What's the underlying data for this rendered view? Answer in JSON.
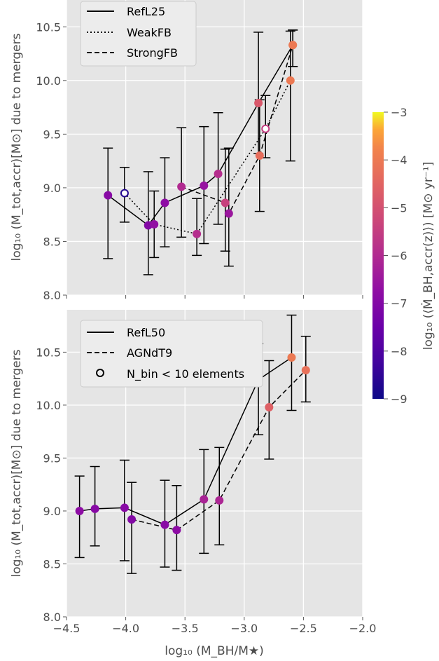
{
  "figure": {
    "xlabel": "log₁₀ (M_BH/M★)",
    "ylabel": "log₁₀ (M_tot,accr)[M⊙] due to mergers",
    "colorbar": {
      "label": "log₁₀ (⟨Ṁ_BH,accr(z)⟩) [M⊙ yr⁻¹]",
      "range": [
        -9,
        -3
      ],
      "ticks": [
        "−9",
        "−8",
        "−7",
        "−6",
        "−5",
        "−4",
        "−3"
      ],
      "colormap": "plasma"
    },
    "x_ticks": [
      "−4.5",
      "−4.0",
      "−3.5",
      "−3.0",
      "−2.5",
      "−2.0"
    ],
    "y_ticks": [
      "8.0",
      "8.5",
      "9.0",
      "9.5",
      "10.0",
      "10.5"
    ]
  },
  "chart_data": [
    {
      "type": "scatter",
      "panel": "top",
      "xlim": [
        -4.5,
        -2.0
      ],
      "ylim": [
        8.0,
        10.75
      ],
      "grid": true,
      "legend_position": "top-left",
      "legend": [
        "RefL25",
        "WeakFB",
        "StrongFB"
      ],
      "series": [
        {
          "name": "RefL25",
          "linestyle": "solid",
          "points": [
            {
              "x": -4.15,
              "y": 8.93,
              "lo": 8.34,
              "hi": 9.37,
              "c": -6.9,
              "open": false
            },
            {
              "x": -3.81,
              "y": 8.65,
              "lo": 8.19,
              "hi": 9.15,
              "c": -7.0,
              "open": false
            },
            {
              "x": -3.67,
              "y": 8.86,
              "lo": 8.45,
              "hi": 9.28,
              "c": -6.8,
              "open": false
            },
            {
              "x": -3.34,
              "y": 9.02,
              "lo": 8.48,
              "hi": 9.57,
              "c": -6.6,
              "open": false
            },
            {
              "x": -3.22,
              "y": 9.13,
              "lo": 8.66,
              "hi": 9.7,
              "c": -5.9,
              "open": false
            },
            {
              "x": -2.88,
              "y": 9.79,
              "lo": 9.32,
              "hi": 10.45,
              "c": -4.8,
              "open": false
            },
            {
              "x": -2.59,
              "y": 10.33,
              "lo": 10.13,
              "hi": 10.47,
              "c": -4.0,
              "open": false
            }
          ]
        },
        {
          "name": "WeakFB",
          "linestyle": "dotted",
          "points": [
            {
              "x": -4.01,
              "y": 8.95,
              "lo": 8.68,
              "hi": 9.19,
              "c": -8.7,
              "open": true
            },
            {
              "x": -3.76,
              "y": 8.66,
              "lo": 8.35,
              "hi": 8.97,
              "c": -6.7,
              "open": false
            },
            {
              "x": -3.4,
              "y": 8.57,
              "lo": 8.37,
              "hi": 8.9,
              "c": -5.9,
              "open": false
            },
            {
              "x": -2.82,
              "y": 9.55,
              "lo": 9.28,
              "hi": 9.86,
              "c": -5.5,
              "open": true
            },
            {
              "x": -2.61,
              "y": 10.0,
              "lo": 9.25,
              "hi": 10.46,
              "c": -4.0,
              "open": false
            }
          ]
        },
        {
          "name": "StrongFB",
          "linestyle": "dashed",
          "points": [
            {
              "x": -3.53,
              "y": 9.01,
              "lo": 8.54,
              "hi": 9.56,
              "c": -6.0,
              "open": false
            },
            {
              "x": -3.16,
              "y": 8.86,
              "lo": 8.41,
              "hi": 9.36,
              "c": -5.4,
              "open": false
            },
            {
              "x": -3.13,
              "y": 8.76,
              "lo": 8.27,
              "hi": 9.37,
              "c": -6.5,
              "open": false
            },
            {
              "x": -2.87,
              "y": 9.3,
              "lo": 8.78,
              "hi": 9.82,
              "c": -4.3,
              "open": false
            },
            {
              "x": -2.59,
              "y": 10.33,
              "lo": 10.13,
              "hi": 10.47,
              "c": -4.0,
              "open": false
            }
          ]
        }
      ]
    },
    {
      "type": "scatter",
      "panel": "bottom",
      "xlim": [
        -4.5,
        -2.0
      ],
      "ylim": [
        8.0,
        10.9
      ],
      "grid": true,
      "legend_position": "top-left",
      "legend": [
        "RefL50",
        "AGNdT9",
        "N_bin < 10 elements"
      ],
      "series": [
        {
          "name": "RefL50",
          "linestyle": "solid",
          "points": [
            {
              "x": -4.39,
              "y": 9.0,
              "lo": 8.56,
              "hi": 9.33,
              "c": -6.8,
              "open": false
            },
            {
              "x": -4.26,
              "y": 9.02,
              "lo": 8.67,
              "hi": 9.42,
              "c": -6.9,
              "open": false
            },
            {
              "x": -4.01,
              "y": 9.03,
              "lo": 8.53,
              "hi": 9.48,
              "c": -6.9,
              "open": false
            },
            {
              "x": -3.67,
              "y": 8.87,
              "lo": 8.47,
              "hi": 9.29,
              "c": -6.9,
              "open": false
            },
            {
              "x": -3.34,
              "y": 9.11,
              "lo": 8.6,
              "hi": 9.58,
              "c": -6.2,
              "open": false
            },
            {
              "x": -2.88,
              "y": 10.24,
              "lo": 9.72,
              "hi": 10.58,
              "c": -5.5,
              "open": false
            },
            {
              "x": -2.6,
              "y": 10.45,
              "lo": 9.95,
              "hi": 10.85,
              "c": -4.0,
              "open": false
            }
          ]
        },
        {
          "name": "AGNdT9",
          "linestyle": "dashed",
          "points": [
            {
              "x": -3.95,
              "y": 8.92,
              "lo": 8.41,
              "hi": 9.27,
              "c": -7.0,
              "open": false
            },
            {
              "x": -3.57,
              "y": 8.82,
              "lo": 8.44,
              "hi": 9.24,
              "c": -6.8,
              "open": false
            },
            {
              "x": -3.21,
              "y": 9.1,
              "lo": 8.68,
              "hi": 9.6,
              "c": -6.1,
              "open": false
            },
            {
              "x": -2.79,
              "y": 9.98,
              "lo": 9.49,
              "hi": 10.42,
              "c": -4.6,
              "open": false
            },
            {
              "x": -2.48,
              "y": 10.33,
              "lo": 10.03,
              "hi": 10.65,
              "c": -4.2,
              "open": false
            }
          ]
        }
      ]
    }
  ]
}
